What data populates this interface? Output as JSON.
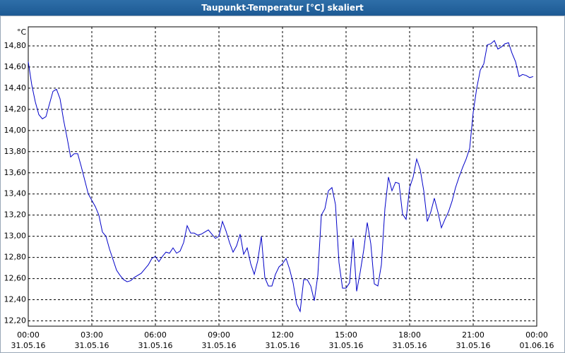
{
  "chart_data": {
    "type": "line",
    "title": "Taupunkt-Temperatur [°C] skaliert",
    "y_unit": "°C",
    "x": [
      0,
      10,
      20,
      30,
      40,
      50,
      60,
      70,
      80,
      90,
      100,
      110,
      120,
      130,
      140,
      150,
      160,
      170,
      180,
      190,
      200,
      210,
      220,
      230,
      240,
      250,
      260,
      270,
      280,
      290,
      300,
      310,
      320,
      330,
      340,
      350,
      360,
      370,
      380,
      390,
      400,
      410,
      420,
      430,
      440,
      450,
      460,
      470,
      480,
      490,
      500,
      510,
      520,
      530,
      540,
      550,
      560,
      570,
      580,
      590,
      600,
      610,
      620,
      630,
      640,
      650,
      660,
      670,
      680,
      690,
      700,
      710,
      720,
      730,
      740,
      750,
      760,
      770,
      780,
      790,
      800,
      810,
      820,
      830,
      840,
      850,
      860,
      870,
      880,
      890,
      900,
      910,
      920,
      930,
      940,
      950,
      960,
      970,
      980,
      990,
      1000,
      1010,
      1020,
      1030,
      1040,
      1050,
      1060,
      1070,
      1080,
      1090,
      1100,
      1110,
      1120,
      1130,
      1140,
      1150,
      1160,
      1170,
      1180,
      1190,
      1200,
      1210,
      1220,
      1230,
      1240,
      1250,
      1260,
      1270,
      1280,
      1290,
      1300,
      1310,
      1320,
      1330,
      1340,
      1350,
      1360,
      1370,
      1380,
      1390,
      1400,
      1410,
      1420,
      1430
    ],
    "series": [
      {
        "color": "#0000c8",
        "values": [
          14.65,
          14.43,
          14.27,
          14.15,
          14.11,
          14.13,
          14.25,
          14.37,
          14.39,
          14.3,
          14.1,
          13.93,
          13.75,
          13.78,
          13.78,
          13.66,
          13.53,
          13.4,
          13.34,
          13.28,
          13.2,
          13.04,
          13.0,
          12.88,
          12.78,
          12.68,
          12.63,
          12.59,
          12.57,
          12.58,
          12.61,
          12.63,
          12.65,
          12.69,
          12.73,
          12.79,
          12.81,
          12.76,
          12.81,
          12.85,
          12.84,
          12.89,
          12.84,
          12.86,
          12.94,
          13.1,
          13.03,
          13.03,
          13.01,
          13.02,
          13.04,
          13.06,
          13.02,
          12.98,
          13.0,
          13.14,
          13.05,
          12.94,
          12.85,
          12.91,
          13.02,
          12.83,
          12.89,
          12.74,
          12.64,
          12.77,
          13.0,
          12.61,
          12.53,
          12.53,
          12.64,
          12.71,
          12.74,
          12.79,
          12.69,
          12.56,
          12.36,
          12.29,
          12.59,
          12.59,
          12.53,
          12.39,
          12.63,
          13.2,
          13.26,
          13.43,
          13.46,
          13.3,
          12.75,
          12.51,
          12.51,
          12.56,
          12.98,
          12.48,
          12.66,
          12.87,
          13.13,
          12.93,
          12.55,
          12.53,
          12.73,
          13.26,
          13.56,
          13.43,
          13.51,
          13.5,
          13.21,
          13.16,
          13.46,
          13.56,
          13.73,
          13.63,
          13.43,
          13.14,
          13.23,
          13.36,
          13.23,
          13.08,
          13.16,
          13.23,
          13.33,
          13.46,
          13.56,
          13.65,
          13.73,
          13.83,
          14.17,
          14.4,
          14.57,
          14.63,
          14.81,
          14.82,
          14.85,
          14.77,
          14.79,
          14.82,
          14.83,
          14.73,
          14.65,
          14.51,
          14.53,
          14.52,
          14.5,
          14.51
        ]
      }
    ],
    "xlim": [
      0,
      1440
    ],
    "xticks": [
      {
        "value": 0,
        "label": "00:00",
        "date": "31.05.16"
      },
      {
        "value": 180,
        "label": "03:00",
        "date": "31.05.16"
      },
      {
        "value": 360,
        "label": "06:00",
        "date": "31.05.16"
      },
      {
        "value": 540,
        "label": "09:00",
        "date": "31.05.16"
      },
      {
        "value": 720,
        "label": "12:00",
        "date": "31.05.16"
      },
      {
        "value": 900,
        "label": "15:00",
        "date": "31.05.16"
      },
      {
        "value": 1080,
        "label": "18:00",
        "date": "31.05.16"
      },
      {
        "value": 1260,
        "label": "21:00",
        "date": "31.05.16"
      },
      {
        "value": 1440,
        "label": "00:00",
        "date": "01.06.16"
      }
    ],
    "ylim": [
      12.15,
      14.98
    ],
    "yticks": [
      {
        "value": 12.2,
        "label": "12,20"
      },
      {
        "value": 12.4,
        "label": "12,40"
      },
      {
        "value": 12.6,
        "label": "12,60"
      },
      {
        "value": 12.8,
        "label": "12,80"
      },
      {
        "value": 13.0,
        "label": "13,00"
      },
      {
        "value": 13.2,
        "label": "13,20"
      },
      {
        "value": 13.4,
        "label": "13,40"
      },
      {
        "value": 13.6,
        "label": "13,60"
      },
      {
        "value": 13.8,
        "label": "13,80"
      },
      {
        "value": 14.0,
        "label": "14,00"
      },
      {
        "value": 14.2,
        "label": "14,20"
      },
      {
        "value": 14.4,
        "label": "14,40"
      },
      {
        "value": 14.6,
        "label": "14,60"
      },
      {
        "value": 14.8,
        "label": "14,80"
      }
    ],
    "grid": true
  }
}
